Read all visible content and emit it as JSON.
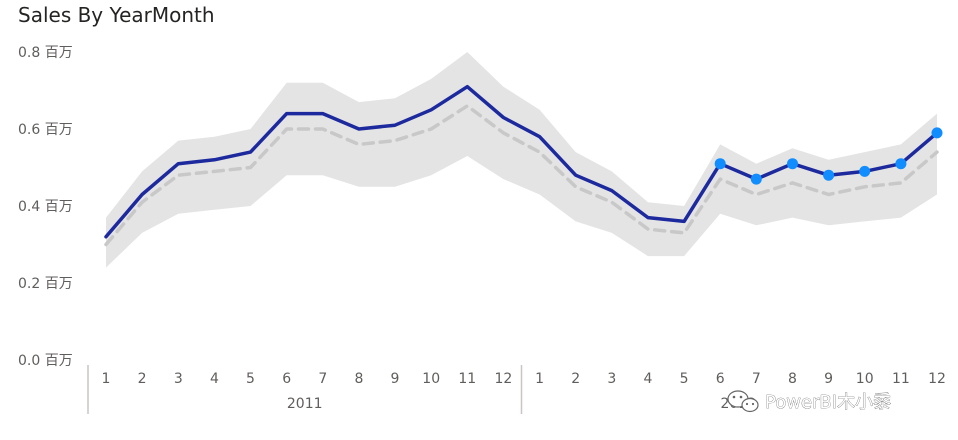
{
  "chart_data": {
    "type": "line",
    "title": "Sales By YearMonth",
    "xlabel": "",
    "ylabel": "",
    "ylim": [
      0,
      0.8
    ],
    "y_unit": "百万",
    "yticks": [
      "0.0 百万",
      "0.2 百万",
      "0.4 百万",
      "0.6 百万",
      "0.8 百万"
    ],
    "y_tick_values": [
      0,
      0.2,
      0.4,
      0.6,
      0.8
    ],
    "categories": [
      "1",
      "2",
      "3",
      "4",
      "5",
      "6",
      "7",
      "8",
      "9",
      "10",
      "11",
      "12",
      "1",
      "2",
      "3",
      "4",
      "5",
      "6",
      "7",
      "8",
      "9",
      "10",
      "11",
      "12"
    ],
    "groups": [
      {
        "label": "2011",
        "start": 0,
        "end": 11
      },
      {
        "label": "2012",
        "start": 12,
        "end": 23
      }
    ],
    "series": [
      {
        "values": [
          0.32,
          0.43,
          0.51,
          0.52,
          0.54,
          0.64,
          0.64,
          0.6,
          0.61,
          0.65,
          0.71,
          0.63,
          0.58,
          0.48,
          0.44,
          0.37,
          0.36,
          0.51,
          0.47,
          0.51,
          0.48,
          0.49,
          0.51,
          0.59
        ],
        "color": "#1d2a9e",
        "style": "solid",
        "markers_from_index": 17,
        "marker_color": "#118dff"
      },
      {
        "values": [
          0.3,
          0.41,
          0.48,
          0.49,
          0.5,
          0.6,
          0.6,
          0.56,
          0.57,
          0.6,
          0.66,
          0.59,
          0.54,
          0.45,
          0.41,
          0.34,
          0.33,
          0.47,
          0.43,
          0.46,
          0.43,
          0.45,
          0.46,
          0.54
        ],
        "color": "#c8c8c8",
        "style": "dashed"
      }
    ],
    "band": {
      "upper": [
        0.37,
        0.49,
        0.57,
        0.58,
        0.6,
        0.72,
        0.72,
        0.67,
        0.68,
        0.73,
        0.8,
        0.71,
        0.65,
        0.54,
        0.49,
        0.41,
        0.4,
        0.56,
        0.51,
        0.55,
        0.52,
        0.54,
        0.56,
        0.64
      ],
      "lower": [
        0.24,
        0.33,
        0.38,
        0.39,
        0.4,
        0.48,
        0.48,
        0.45,
        0.45,
        0.48,
        0.53,
        0.47,
        0.43,
        0.36,
        0.33,
        0.27,
        0.27,
        0.38,
        0.35,
        0.37,
        0.35,
        0.36,
        0.37,
        0.43
      ],
      "color": "#e4e4e4"
    },
    "grid": false,
    "legend": "none"
  },
  "watermark": {
    "text": "PowerBI木小黍",
    "icon": "wechat-icon"
  }
}
